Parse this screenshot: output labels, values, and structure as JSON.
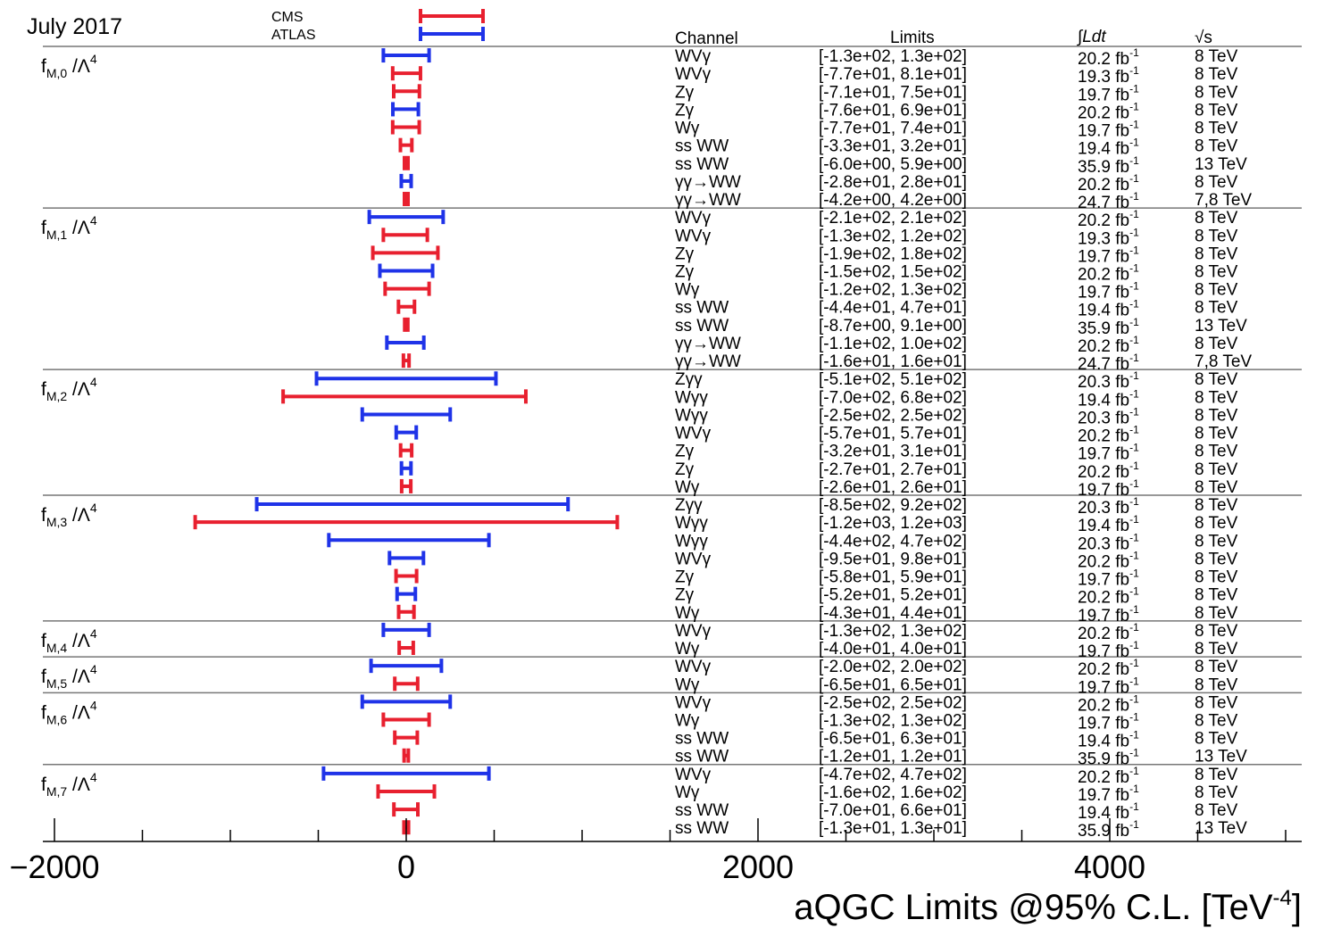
{
  "chart_data": {
    "type": "errorbar-intervals",
    "date_label": "July 2017",
    "legend": {
      "placement": "top-left",
      "items": [
        {
          "name": "CMS",
          "color": "#e8202f"
        },
        {
          "name": "ATLAS",
          "color": "#1f33e8"
        }
      ]
    },
    "column_headers": {
      "channel": "Channel",
      "limits": "Limits",
      "lumi": "∫Ldt",
      "energy": "√s"
    },
    "xlabel": "aQGC Limits @95% C.L. [TeV",
    "xlabel_sup": "-4",
    "xlabel_end": "]",
    "xlim": [
      -2000,
      5100
    ],
    "xticks": [
      -2000,
      0,
      2000,
      4000
    ],
    "xtick_labels": [
      "−2000",
      "0",
      "2000",
      "4000"
    ],
    "lumi_unit": "fb",
    "lumi_sup": "-1",
    "groups": [
      {
        "label": "f",
        "sub": "M,0",
        "tail": "/Λ",
        "sup": "4",
        "rows": [
          {
            "exp": "ATLAS",
            "channel": "WVγ",
            "low": -130,
            "high": 130,
            "limits": "[-1.3e+02, 1.3e+02]",
            "lumi": "20.2",
            "energy": "8 TeV"
          },
          {
            "exp": "CMS",
            "channel": "WVγ",
            "low": -77,
            "high": 81,
            "limits": "[-7.7e+01, 8.1e+01]",
            "lumi": "19.3",
            "energy": "8 TeV"
          },
          {
            "exp": "CMS",
            "channel": "Zγ",
            "low": -71,
            "high": 75,
            "limits": "[-7.1e+01, 7.5e+01]",
            "lumi": "19.7",
            "energy": "8 TeV"
          },
          {
            "exp": "ATLAS",
            "channel": "Zγ",
            "low": -76,
            "high": 69,
            "limits": "[-7.6e+01, 6.9e+01]",
            "lumi": "20.2",
            "energy": "8 TeV"
          },
          {
            "exp": "CMS",
            "channel": "Wγ",
            "low": -77,
            "high": 74,
            "limits": "[-7.7e+01, 7.4e+01]",
            "lumi": "19.7",
            "energy": "8 TeV"
          },
          {
            "exp": "CMS",
            "channel": "ss WW",
            "low": -33,
            "high": 32,
            "limits": "[-3.3e+01, 3.2e+01]",
            "lumi": "19.4",
            "energy": "8 TeV"
          },
          {
            "exp": "CMS",
            "channel": "ss WW",
            "low": -6,
            "high": 5.9,
            "limits": "[-6.0e+00, 5.9e+00]",
            "lumi": "35.9",
            "energy": "13 TeV"
          },
          {
            "exp": "ATLAS",
            "channel": "γγ→WW",
            "low": -28,
            "high": 28,
            "limits": "[-2.8e+01, 2.8e+01]",
            "lumi": "20.2",
            "energy": "8 TeV"
          },
          {
            "exp": "CMS",
            "channel": "γγ→WW",
            "low": -4.2,
            "high": 4.2,
            "limits": "[-4.2e+00, 4.2e+00]",
            "lumi": "24.7",
            "energy": "7,8 TeV"
          }
        ]
      },
      {
        "label": "f",
        "sub": "M,1",
        "tail": "/Λ",
        "sup": "4",
        "rows": [
          {
            "exp": "ATLAS",
            "channel": "WVγ",
            "low": -210,
            "high": 210,
            "limits": "[-2.1e+02, 2.1e+02]",
            "lumi": "20.2",
            "energy": "8 TeV"
          },
          {
            "exp": "CMS",
            "channel": "WVγ",
            "low": -130,
            "high": 120,
            "limits": "[-1.3e+02, 1.2e+02]",
            "lumi": "19.3",
            "energy": "8 TeV"
          },
          {
            "exp": "CMS",
            "channel": "Zγ",
            "low": -190,
            "high": 180,
            "limits": "[-1.9e+02, 1.8e+02]",
            "lumi": "19.7",
            "energy": "8 TeV"
          },
          {
            "exp": "ATLAS",
            "channel": "Zγ",
            "low": -150,
            "high": 150,
            "limits": "[-1.5e+02, 1.5e+02]",
            "lumi": "20.2",
            "energy": "8 TeV"
          },
          {
            "exp": "CMS",
            "channel": "Wγ",
            "low": -120,
            "high": 130,
            "limits": "[-1.2e+02, 1.3e+02]",
            "lumi": "19.7",
            "energy": "8 TeV"
          },
          {
            "exp": "CMS",
            "channel": "ss WW",
            "low": -44,
            "high": 47,
            "limits": "[-4.4e+01, 4.7e+01]",
            "lumi": "19.4",
            "energy": "8 TeV"
          },
          {
            "exp": "CMS",
            "channel": "ss WW",
            "low": -8.7,
            "high": 9.1,
            "limits": "[-8.7e+00, 9.1e+00]",
            "lumi": "35.9",
            "energy": "13 TeV"
          },
          {
            "exp": "ATLAS",
            "channel": "γγ→WW",
            "low": -110,
            "high": 100,
            "limits": "[-1.1e+02, 1.0e+02]",
            "lumi": "20.2",
            "energy": "8 TeV"
          },
          {
            "exp": "CMS",
            "channel": "γγ→WW",
            "low": -16,
            "high": 16,
            "limits": "[-1.6e+01, 1.6e+01]",
            "lumi": "24.7",
            "energy": "7,8 TeV"
          }
        ]
      },
      {
        "label": "f",
        "sub": "M,2",
        "tail": "/Λ",
        "sup": "4",
        "rows": [
          {
            "exp": "ATLAS",
            "channel": "Zγγ",
            "low": -510,
            "high": 510,
            "limits": "[-5.1e+02, 5.1e+02]",
            "lumi": "20.3",
            "energy": "8 TeV"
          },
          {
            "exp": "CMS",
            "channel": "Wγγ",
            "low": -700,
            "high": 680,
            "limits": "[-7.0e+02, 6.8e+02]",
            "lumi": "19.4",
            "energy": "8 TeV"
          },
          {
            "exp": "ATLAS",
            "channel": "Wγγ",
            "low": -250,
            "high": 250,
            "limits": "[-2.5e+02, 2.5e+02]",
            "lumi": "20.3",
            "energy": "8 TeV"
          },
          {
            "exp": "ATLAS",
            "channel": "WVγ",
            "low": -57,
            "high": 57,
            "limits": "[-5.7e+01, 5.7e+01]",
            "lumi": "20.2",
            "energy": "8 TeV"
          },
          {
            "exp": "CMS",
            "channel": "Zγ",
            "low": -32,
            "high": 31,
            "limits": "[-3.2e+01, 3.1e+01]",
            "lumi": "19.7",
            "energy": "8 TeV"
          },
          {
            "exp": "ATLAS",
            "channel": "Zγ",
            "low": -27,
            "high": 27,
            "limits": "[-2.7e+01, 2.7e+01]",
            "lumi": "20.2",
            "energy": "8 TeV"
          },
          {
            "exp": "CMS",
            "channel": "Wγ",
            "low": -26,
            "high": 26,
            "limits": "[-2.6e+01, 2.6e+01]",
            "lumi": "19.7",
            "energy": "8 TeV"
          }
        ]
      },
      {
        "label": "f",
        "sub": "M,3",
        "tail": "/Λ",
        "sup": "4",
        "rows": [
          {
            "exp": "ATLAS",
            "channel": "Zγγ",
            "low": -850,
            "high": 920,
            "limits": "[-8.5e+02, 9.2e+02]",
            "lumi": "20.3",
            "energy": "8 TeV"
          },
          {
            "exp": "CMS",
            "channel": "Wγγ",
            "low": -1200,
            "high": 1200,
            "limits": "[-1.2e+03, 1.2e+03]",
            "lumi": "19.4",
            "energy": "8 TeV"
          },
          {
            "exp": "ATLAS",
            "channel": "Wγγ",
            "low": -440,
            "high": 470,
            "limits": "[-4.4e+02, 4.7e+02]",
            "lumi": "20.3",
            "energy": "8 TeV"
          },
          {
            "exp": "ATLAS",
            "channel": "WVγ",
            "low": -95,
            "high": 98,
            "limits": "[-9.5e+01, 9.8e+01]",
            "lumi": "20.2",
            "energy": "8 TeV"
          },
          {
            "exp": "CMS",
            "channel": "Zγ",
            "low": -58,
            "high": 59,
            "limits": "[-5.8e+01, 5.9e+01]",
            "lumi": "19.7",
            "energy": "8 TeV"
          },
          {
            "exp": "ATLAS",
            "channel": "Zγ",
            "low": -52,
            "high": 52,
            "limits": "[-5.2e+01, 5.2e+01]",
            "lumi": "20.2",
            "energy": "8 TeV"
          },
          {
            "exp": "CMS",
            "channel": "Wγ",
            "low": -43,
            "high": 44,
            "limits": "[-4.3e+01, 4.4e+01]",
            "lumi": "19.7",
            "energy": "8 TeV"
          }
        ]
      },
      {
        "label": "f",
        "sub": "M,4",
        "tail": "/Λ",
        "sup": "4",
        "rows": [
          {
            "exp": "ATLAS",
            "channel": "WVγ",
            "low": -130,
            "high": 130,
            "limits": "[-1.3e+02, 1.3e+02]",
            "lumi": "20.2",
            "energy": "8 TeV"
          },
          {
            "exp": "CMS",
            "channel": "Wγ",
            "low": -40,
            "high": 40,
            "limits": "[-4.0e+01, 4.0e+01]",
            "lumi": "19.7",
            "energy": "8 TeV"
          }
        ]
      },
      {
        "label": "f",
        "sub": "M,5",
        "tail": "/Λ",
        "sup": "4",
        "rows": [
          {
            "exp": "ATLAS",
            "channel": "WVγ",
            "low": -200,
            "high": 200,
            "limits": "[-2.0e+02, 2.0e+02]",
            "lumi": "20.2",
            "energy": "8 TeV"
          },
          {
            "exp": "CMS",
            "channel": "Wγ",
            "low": -65,
            "high": 65,
            "limits": "[-6.5e+01, 6.5e+01]",
            "lumi": "19.7",
            "energy": "8 TeV"
          }
        ]
      },
      {
        "label": "f",
        "sub": "M,6",
        "tail": "/Λ",
        "sup": "4",
        "rows": [
          {
            "exp": "ATLAS",
            "channel": "WVγ",
            "low": -250,
            "high": 250,
            "limits": "[-2.5e+02, 2.5e+02]",
            "lumi": "20.2",
            "energy": "8 TeV"
          },
          {
            "exp": "CMS",
            "channel": "Wγ",
            "low": -130,
            "high": 130,
            "limits": "[-1.3e+02, 1.3e+02]",
            "lumi": "19.7",
            "energy": "8 TeV"
          },
          {
            "exp": "CMS",
            "channel": "ss WW",
            "low": -65,
            "high": 63,
            "limits": "[-6.5e+01, 6.3e+01]",
            "lumi": "19.4",
            "energy": "8 TeV"
          },
          {
            "exp": "CMS",
            "channel": "ss WW",
            "low": -12,
            "high": 12,
            "limits": "[-1.2e+01, 1.2e+01]",
            "lumi": "35.9",
            "energy": "13 TeV"
          }
        ]
      },
      {
        "label": "f",
        "sub": "M,7",
        "tail": "/Λ",
        "sup": "4",
        "rows": [
          {
            "exp": "ATLAS",
            "channel": "WVγ",
            "low": -470,
            "high": 470,
            "limits": "[-4.7e+02, 4.7e+02]",
            "lumi": "20.2",
            "energy": "8 TeV"
          },
          {
            "exp": "CMS",
            "channel": "Wγ",
            "low": -160,
            "high": 160,
            "limits": "[-1.6e+02, 1.6e+02]",
            "lumi": "19.7",
            "energy": "8 TeV"
          },
          {
            "exp": "CMS",
            "channel": "ss WW",
            "low": -70,
            "high": 66,
            "limits": "[-7.0e+01, 6.6e+01]",
            "lumi": "19.4",
            "energy": "8 TeV"
          },
          {
            "exp": "CMS",
            "channel": "ss WW",
            "low": -13,
            "high": 13,
            "limits": "[-1.3e+01, 1.3e+01]",
            "lumi": "35.9",
            "energy": "13 TeV"
          }
        ]
      }
    ]
  }
}
